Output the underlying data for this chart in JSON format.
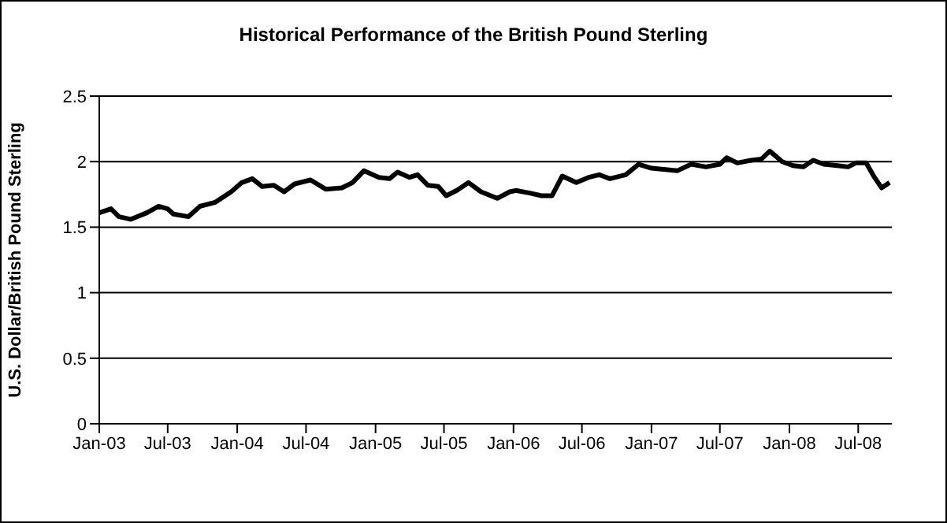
{
  "chart_data": {
    "type": "line",
    "title": "Historical Performance of the British Pound Sterling",
    "ylabel": "U.S. Dollar/British Pound Sterling",
    "x": [
      "2003-01-01",
      "2003-02-01",
      "2003-02-22",
      "2003-03-25",
      "2003-05-07",
      "2003-06-07",
      "2003-07-01",
      "2003-07-16",
      "2003-08-25",
      "2003-09-25",
      "2003-11-04",
      "2003-12-16",
      "2004-01-13",
      "2004-02-10",
      "2004-03-07",
      "2004-04-07",
      "2004-05-04",
      "2004-06-01",
      "2004-07-13",
      "2004-08-22",
      "2004-10-04",
      "2004-11-01",
      "2004-12-01",
      "2005-01-10",
      "2005-02-07",
      "2005-02-28",
      "2005-04-01",
      "2005-04-22",
      "2005-05-19",
      "2005-06-16",
      "2005-07-07",
      "2005-08-04",
      "2005-09-04",
      "2005-10-07",
      "2005-11-19",
      "2005-12-22",
      "2006-01-07",
      "2006-02-13",
      "2006-03-16",
      "2006-04-13",
      "2006-05-10",
      "2006-06-16",
      "2006-07-19",
      "2006-08-16",
      "2006-09-13",
      "2006-10-25",
      "2006-11-28",
      "2007-01-01",
      "2007-02-07",
      "2007-03-10",
      "2007-04-16",
      "2007-05-25",
      "2007-07-01",
      "2007-07-19",
      "2007-08-16",
      "2007-09-22",
      "2007-10-19",
      "2007-11-10",
      "2007-12-13",
      "2008-01-10",
      "2008-02-07",
      "2008-03-04",
      "2008-04-01",
      "2008-05-07",
      "2008-06-04",
      "2008-06-25",
      "2008-07-22",
      "2008-08-13",
      "2008-09-01",
      "2008-09-22"
    ],
    "series": [
      {
        "color": "#000000",
        "values": [
          1.61,
          1.64,
          1.58,
          1.56,
          1.61,
          1.66,
          1.64,
          1.6,
          1.58,
          1.66,
          1.69,
          1.77,
          1.84,
          1.87,
          1.81,
          1.82,
          1.77,
          1.83,
          1.86,
          1.79,
          1.8,
          1.84,
          1.93,
          1.88,
          1.87,
          1.92,
          1.88,
          1.9,
          1.82,
          1.81,
          1.74,
          1.78,
          1.84,
          1.77,
          1.72,
          1.77,
          1.78,
          1.76,
          1.74,
          1.74,
          1.89,
          1.84,
          1.88,
          1.9,
          1.87,
          1.9,
          1.98,
          1.95,
          1.94,
          1.93,
          1.98,
          1.96,
          1.98,
          2.03,
          1.99,
          2.01,
          2.02,
          2.08,
          2.0,
          1.97,
          1.96,
          2.01,
          1.98,
          1.97,
          1.96,
          1.99,
          1.99,
          1.88,
          1.8,
          1.84
        ]
      }
    ],
    "xlim": [
      "2003-01-01",
      "2008-09-28"
    ],
    "xticks": [
      {
        "value": "2003-01-01",
        "label": "Jan-03"
      },
      {
        "value": "2003-07-01",
        "label": "Jul-03"
      },
      {
        "value": "2004-01-01",
        "label": "Jan-04"
      },
      {
        "value": "2004-07-01",
        "label": "Jul-04"
      },
      {
        "value": "2005-01-01",
        "label": "Jan-05"
      },
      {
        "value": "2005-07-01",
        "label": "Jul-05"
      },
      {
        "value": "2006-01-01",
        "label": "Jan-06"
      },
      {
        "value": "2006-07-01",
        "label": "Jul-06"
      },
      {
        "value": "2007-01-01",
        "label": "Jan-07"
      },
      {
        "value": "2007-07-01",
        "label": "Jul-07"
      },
      {
        "value": "2008-01-01",
        "label": "Jan-08"
      },
      {
        "value": "2008-07-01",
        "label": "Jul-08"
      }
    ],
    "ylim": [
      0,
      2.5
    ],
    "yticks": [
      0,
      0.5,
      1,
      1.5,
      2,
      2.5
    ],
    "grid": "y"
  }
}
